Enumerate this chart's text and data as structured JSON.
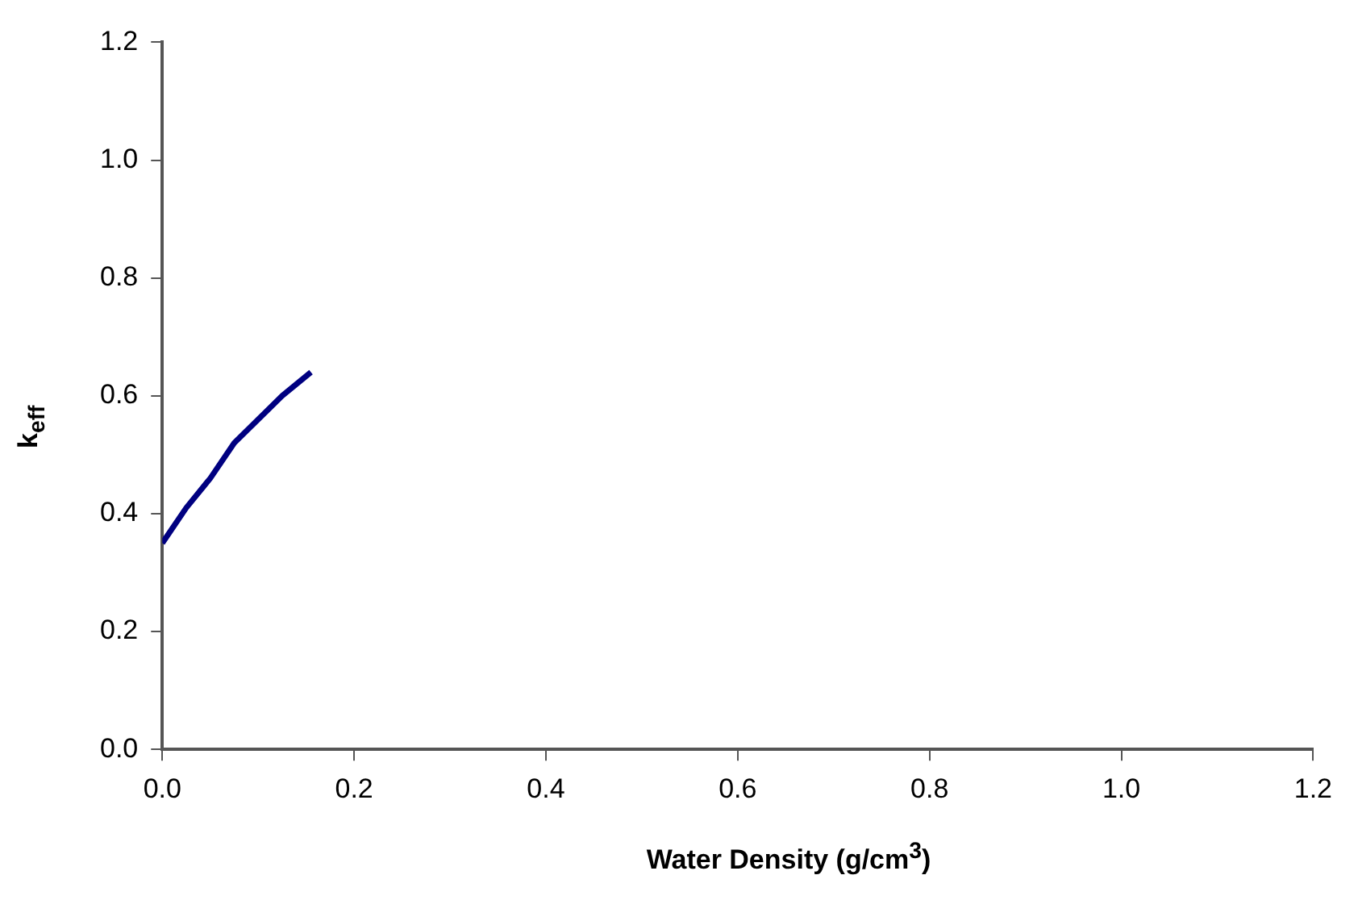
{
  "chart_data": {
    "type": "line",
    "xlabel": "Water Density (g/cm$^{3}$)",
    "ylabel": "k$_{eff}$",
    "x": [
      0,
      0.025,
      0.05,
      0.075,
      0.1,
      0.125,
      0.155
    ],
    "series": [
      {
        "color": "#000080",
        "values": [
          0.35,
          0.41,
          0.46,
          0.52,
          0.56,
          0.6,
          0.64
        ]
      }
    ],
    "xlim": [
      0,
      1.2
    ],
    "xticks": [
      {
        "value": 0,
        "label": "0.0"
      },
      0.2,
      0.4,
      0.6,
      0.8,
      {
        "value": 1,
        "label": "1.0"
      },
      1.2
    ],
    "ylim": [
      0,
      1.2
    ],
    "yticks": [
      {
        "value": 0,
        "label": "0.0"
      },
      0.2,
      0.4,
      0.6,
      0.8,
      {
        "value": 1,
        "label": "1.0"
      },
      1.2
    ],
    "grid": false,
    "legend": false,
    "marker": "none",
    "line_style": "solid"
  }
}
